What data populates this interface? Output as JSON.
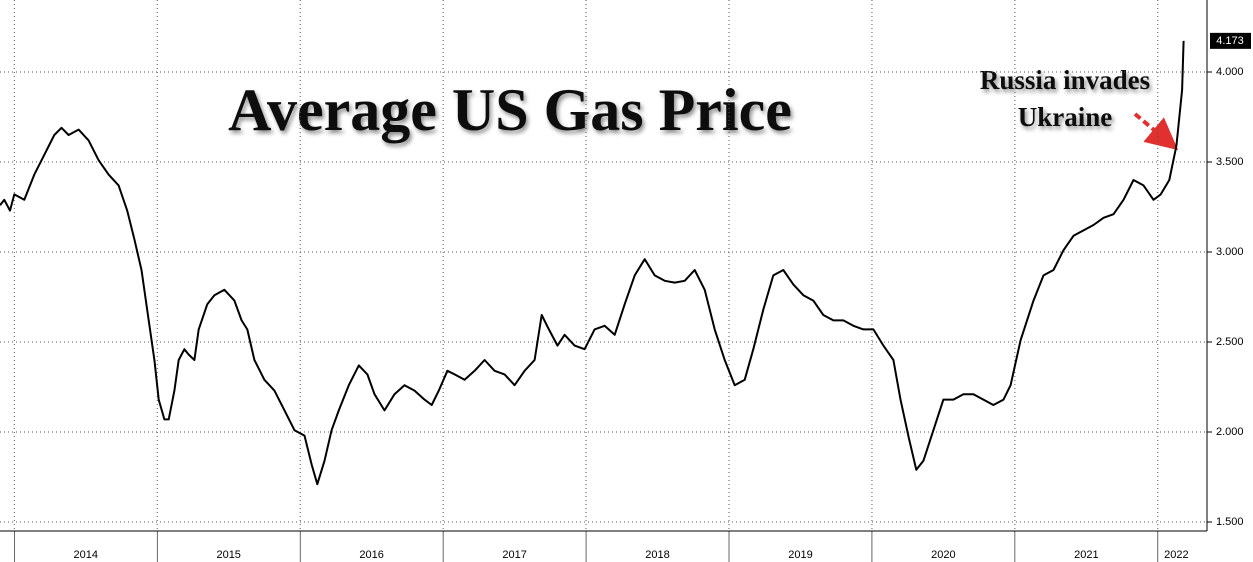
{
  "chart_data": {
    "type": "line",
    "title": "Average US Gas Price",
    "annotation": [
      "Russia invades",
      "Ukraine"
    ],
    "color": "#000000",
    "grid": true,
    "xlim": [
      2013.9,
      2022.33
    ],
    "ylim": [
      1.45,
      4.4
    ],
    "xticks": [
      2014,
      2015,
      2016,
      2017,
      2018,
      2019,
      2020,
      2021,
      2022
    ],
    "yticks": [
      {
        "value": 1.5,
        "label": "1.500"
      },
      {
        "value": 2,
        "label": "2.000"
      },
      {
        "value": 2.5,
        "label": "2.500"
      },
      {
        "value": 3,
        "label": "3.000"
      },
      {
        "value": 3.5,
        "label": "3.500"
      },
      {
        "value": 4,
        "label": "4.000"
      }
    ],
    "x": [
      2013.9,
      2013.93,
      2013.97,
      2014.0,
      2014.07,
      2014.14,
      2014.21,
      2014.28,
      2014.33,
      2014.38,
      2014.45,
      2014.52,
      2014.59,
      2014.66,
      2014.73,
      2014.79,
      2014.84,
      2014.89,
      2014.94,
      2014.98,
      2015.01,
      2015.05,
      2015.08,
      2015.12,
      2015.15,
      2015.19,
      2015.22,
      2015.26,
      2015.29,
      2015.35,
      2015.4,
      2015.47,
      2015.54,
      2015.59,
      2015.63,
      2015.68,
      2015.75,
      2015.82,
      2015.89,
      2015.96,
      2016.03,
      2016.08,
      2016.12,
      2016.17,
      2016.22,
      2016.27,
      2016.34,
      2016.41,
      2016.47,
      2016.52,
      2016.59,
      2016.66,
      2016.73,
      2016.8,
      2016.87,
      2016.92,
      2016.97,
      2017.03,
      2017.08,
      2017.15,
      2017.22,
      2017.29,
      2017.36,
      2017.43,
      2017.5,
      2017.57,
      2017.64,
      2017.69,
      2017.74,
      2017.8,
      2017.85,
      2017.92,
      2017.99,
      2018.06,
      2018.13,
      2018.2,
      2018.27,
      2018.34,
      2018.41,
      2018.48,
      2018.55,
      2018.62,
      2018.69,
      2018.76,
      2018.83,
      2018.9,
      2018.97,
      2019.04,
      2019.11,
      2019.17,
      2019.24,
      2019.31,
      2019.38,
      2019.45,
      2019.52,
      2019.59,
      2019.66,
      2019.73,
      2019.8,
      2019.87,
      2019.94,
      2020.01,
      2020.08,
      2020.15,
      2020.2,
      2020.26,
      2020.31,
      2020.36,
      2020.43,
      2020.5,
      2020.57,
      2020.64,
      2020.71,
      2020.78,
      2020.85,
      2020.92,
      2020.97,
      2021.04,
      2021.13,
      2021.2,
      2021.27,
      2021.34,
      2021.41,
      2021.48,
      2021.55,
      2021.62,
      2021.69,
      2021.76,
      2021.83,
      2021.9,
      2021.97,
      2022.02,
      2022.08,
      2022.13,
      2022.17,
      2022.18
    ],
    "values": [
      3.26,
      3.29,
      3.23,
      3.32,
      3.29,
      3.43,
      3.54,
      3.65,
      3.69,
      3.65,
      3.68,
      3.62,
      3.51,
      3.43,
      3.37,
      3.23,
      3.07,
      2.9,
      2.62,
      2.4,
      2.18,
      2.07,
      2.07,
      2.23,
      2.4,
      2.46,
      2.43,
      2.4,
      2.57,
      2.71,
      2.76,
      2.79,
      2.73,
      2.62,
      2.57,
      2.4,
      2.29,
      2.23,
      2.12,
      2.01,
      1.98,
      1.82,
      1.71,
      1.84,
      2.01,
      2.12,
      2.26,
      2.37,
      2.32,
      2.21,
      2.12,
      2.21,
      2.26,
      2.23,
      2.18,
      2.15,
      2.23,
      2.34,
      2.32,
      2.29,
      2.34,
      2.4,
      2.34,
      2.32,
      2.26,
      2.34,
      2.4,
      2.65,
      2.57,
      2.48,
      2.54,
      2.48,
      2.46,
      2.57,
      2.59,
      2.54,
      2.71,
      2.87,
      2.96,
      2.87,
      2.84,
      2.83,
      2.84,
      2.9,
      2.79,
      2.57,
      2.4,
      2.26,
      2.29,
      2.46,
      2.68,
      2.87,
      2.9,
      2.82,
      2.76,
      2.73,
      2.65,
      2.62,
      2.62,
      2.59,
      2.57,
      2.57,
      2.48,
      2.4,
      2.18,
      1.96,
      1.79,
      1.84,
      2.01,
      2.18,
      2.18,
      2.21,
      2.21,
      2.18,
      2.15,
      2.18,
      2.26,
      2.51,
      2.73,
      2.87,
      2.9,
      3.01,
      3.09,
      3.12,
      3.15,
      3.19,
      3.21,
      3.29,
      3.4,
      3.37,
      3.29,
      3.32,
      3.4,
      3.59,
      3.9,
      4.173
    ]
  }
}
